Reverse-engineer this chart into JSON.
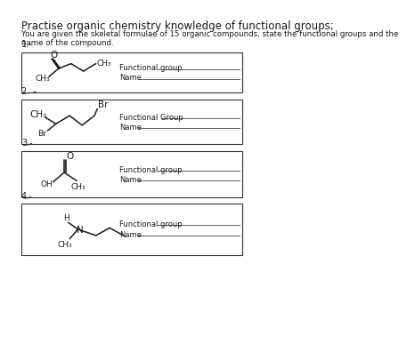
{
  "title": "Practise organic chemistry knowledge of functional groups;",
  "subtitle": "You are given the skeletal formulae of 15 organic compounds, state the functional groups and the\nname of the compound.",
  "background_color": "#ffffff",
  "text_color": "#1a1a1a",
  "questions": [
    {
      "number": "1.-",
      "fg_label": "Functional group",
      "name_label": "Name"
    },
    {
      "number": "2. –",
      "fg_label": "Functional Group",
      "name_label": "Name"
    },
    {
      "number": "3.-",
      "fg_label": "Functional group",
      "name_label": "Name"
    },
    {
      "number": "4.-",
      "fg_label": "Functional group",
      "name_label": "Name"
    }
  ],
  "font_size_title": 8.5,
  "font_size_subtitle": 6.2,
  "font_size_label": 6.0,
  "font_size_number": 7.0,
  "font_size_chem": 6.5
}
